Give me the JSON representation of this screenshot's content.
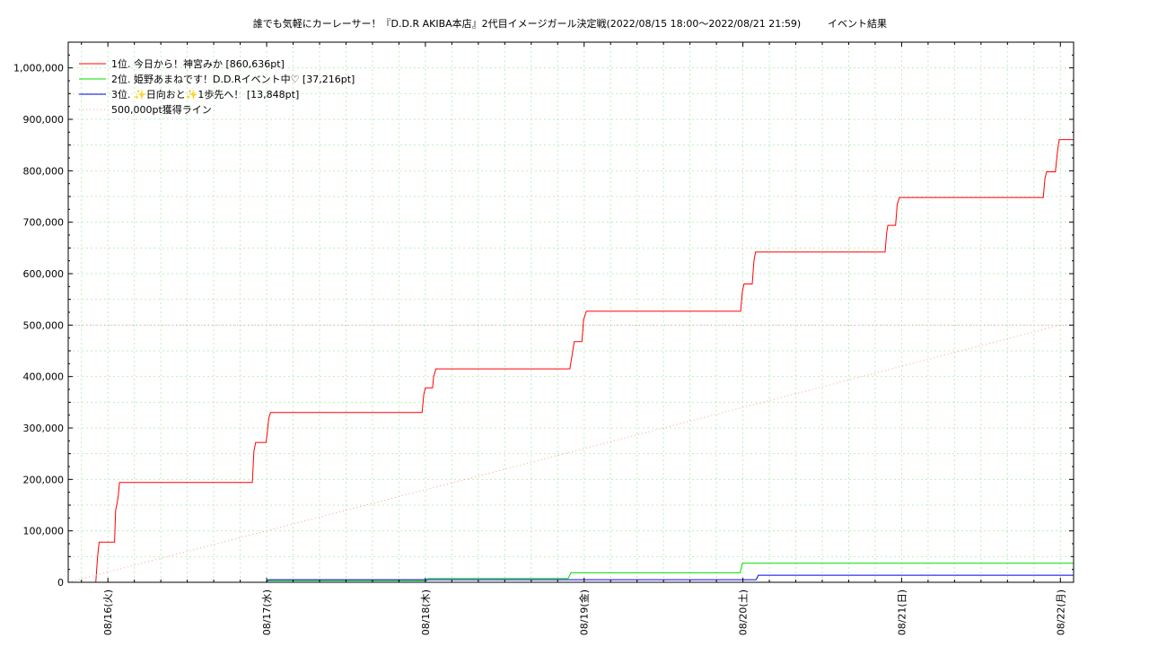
{
  "chart_data": {
    "type": "line",
    "title": "誰でも気軽にカーレーサー！『D.D.R AKIBA本店』2代目イメージガール決定戦(2022/08/15 18:00～2022/08/21 21:59)",
    "subtitle": "イベント結果",
    "xlabel": "",
    "ylabel": "",
    "xlim": [
      "2022-08-15 18:00",
      "2022-08-22 02:00"
    ],
    "ylim": [
      0,
      1050000
    ],
    "y_ticks": [
      0,
      100000,
      200000,
      300000,
      400000,
      500000,
      600000,
      700000,
      800000,
      900000,
      1000000
    ],
    "y_tick_labels": [
      "0",
      "100,000",
      "200,000",
      "300,000",
      "400,000",
      "500,000",
      "600,000",
      "700,000",
      "800,000",
      "900,000",
      "1,000,000"
    ],
    "x_ticks": [
      "2022-08-16 00:00",
      "2022-08-17 00:00",
      "2022-08-18 00:00",
      "2022-08-19 00:00",
      "2022-08-20 00:00",
      "2022-08-21 00:00",
      "2022-08-22 00:00"
    ],
    "x_tick_labels": [
      "08/16(火)",
      "08/17(水)",
      "08/18(木)",
      "08/19(金)",
      "08/20(土)",
      "08/21(日)",
      "08/22(月)"
    ],
    "grid": true,
    "legend_position": "top-left",
    "series": [
      {
        "name": "1位. 今日から！神宮みか [860,636pt]",
        "color": "#ff0000",
        "style": "solid",
        "points": [
          [
            "2022-08-15 22:10",
            0
          ],
          [
            "2022-08-15 22:25",
            45000
          ],
          [
            "2022-08-15 22:40",
            78000
          ],
          [
            "2022-08-16 01:00",
            78000
          ],
          [
            "2022-08-16 01:10",
            140000
          ],
          [
            "2022-08-16 01:25",
            155000
          ],
          [
            "2022-08-16 01:35",
            170000
          ],
          [
            "2022-08-16 01:45",
            194000
          ],
          [
            "2022-08-16 21:50",
            194000
          ],
          [
            "2022-08-16 22:05",
            255000
          ],
          [
            "2022-08-16 22:20",
            272000
          ],
          [
            "2022-08-16 23:55",
            272000
          ],
          [
            "2022-08-17 00:05",
            290000
          ],
          [
            "2022-08-17 00:20",
            320000
          ],
          [
            "2022-08-17 00:35",
            330000
          ],
          [
            "2022-08-17 23:30",
            330000
          ],
          [
            "2022-08-17 23:45",
            365000
          ],
          [
            "2022-08-18 00:00",
            378000
          ],
          [
            "2022-08-18 01:05",
            378000
          ],
          [
            "2022-08-18 01:15",
            400000
          ],
          [
            "2022-08-18 01:35",
            415000
          ],
          [
            "2022-08-18 21:50",
            415000
          ],
          [
            "2022-08-18 22:10",
            440000
          ],
          [
            "2022-08-18 22:30",
            468000
          ],
          [
            "2022-08-18 23:40",
            468000
          ],
          [
            "2022-08-18 23:55",
            510000
          ],
          [
            "2022-08-19 00:20",
            527000
          ],
          [
            "2022-08-19 23:40",
            527000
          ],
          [
            "2022-08-19 23:55",
            565000
          ],
          [
            "2022-08-20 00:10",
            580000
          ],
          [
            "2022-08-20 01:25",
            580000
          ],
          [
            "2022-08-20 01:40",
            625000
          ],
          [
            "2022-08-20 01:55",
            642000
          ],
          [
            "2022-08-20 21:30",
            642000
          ],
          [
            "2022-08-20 21:45",
            680000
          ],
          [
            "2022-08-20 21:55",
            694000
          ],
          [
            "2022-08-20 23:05",
            694000
          ],
          [
            "2022-08-20 23:20",
            735000
          ],
          [
            "2022-08-20 23:40",
            748000
          ],
          [
            "2022-08-21 21:25",
            748000
          ],
          [
            "2022-08-21 21:40",
            785000
          ],
          [
            "2022-08-21 21:55",
            798000
          ],
          [
            "2022-08-21 23:15",
            798000
          ],
          [
            "2022-08-21 23:35",
            840000
          ],
          [
            "2022-08-21 23:50",
            860636
          ],
          [
            "2022-08-22 01:55",
            860636
          ]
        ]
      },
      {
        "name": "2位. 姫野あまねです！D.D.Rイベント中♡ [37,216pt]",
        "color": "#00dd00",
        "style": "solid",
        "points": [
          [
            "2022-08-17 00:10",
            3000
          ],
          [
            "2022-08-18 00:10",
            3000
          ],
          [
            "2022-08-18 00:25",
            7500
          ],
          [
            "2022-08-18 21:35",
            7500
          ],
          [
            "2022-08-18 22:00",
            18500
          ],
          [
            "2022-08-19 23:35",
            18500
          ],
          [
            "2022-08-19 23:55",
            37216
          ],
          [
            "2022-08-22 01:55",
            37216
          ]
        ]
      },
      {
        "name": "3位. ✨日向おと✨1歩先へ！ [13,848pt]",
        "color": "#0000ee",
        "style": "solid",
        "points": [
          [
            "2022-08-16 23:55",
            0
          ],
          [
            "2022-08-17 00:15",
            5000
          ],
          [
            "2022-08-20 02:00",
            5000
          ],
          [
            "2022-08-20 02:20",
            13848
          ],
          [
            "2022-08-22 01:55",
            13848
          ]
        ]
      },
      {
        "name": "500,000pt獲得ライン",
        "color": "#ff9999",
        "style": "dotted",
        "points": [
          [
            "2022-08-15 18:00",
            0
          ],
          [
            "2022-08-22 00:00",
            500000
          ]
        ]
      }
    ],
    "reference_lines": [
      {
        "y": 500000,
        "color": "#ff9999",
        "style": "dotted"
      }
    ]
  }
}
